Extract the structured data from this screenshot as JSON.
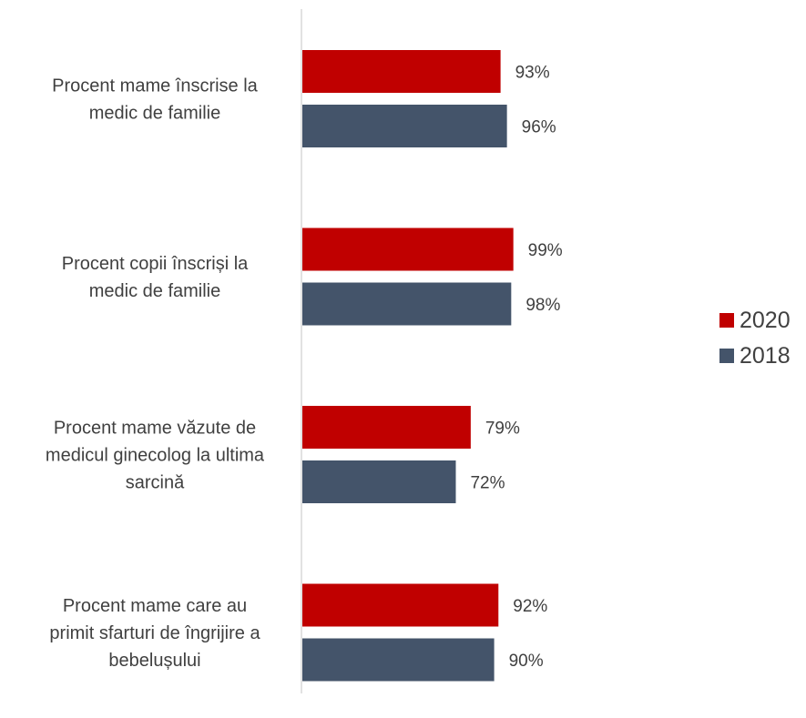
{
  "chart_data": {
    "type": "bar",
    "orientation": "horizontal",
    "categories": [
      [
        "Procent mame înscrise la",
        "medic de familie"
      ],
      [
        "Procent copii înscriși la",
        "medic de familie"
      ],
      [
        "Procent mame văzute de",
        "medicul ginecolog la ultima",
        "sarcină"
      ],
      [
        "Procent mame care au",
        "primit sfarturi de îngrijire a",
        "bebelușului"
      ]
    ],
    "series": [
      {
        "name": "2020",
        "color": "#C00000",
        "values": [
          93,
          99,
          79,
          92
        ],
        "labels": [
          "93%",
          "99%",
          "79%",
          "92%"
        ]
      },
      {
        "name": "2018",
        "color": "#44546A",
        "values": [
          96,
          98,
          72,
          90
        ],
        "labels": [
          "96%",
          "98%",
          "72%",
          "90%"
        ]
      }
    ],
    "xlim": [
      0,
      100
    ],
    "unit": "%",
    "grid": false,
    "legend": "right"
  }
}
